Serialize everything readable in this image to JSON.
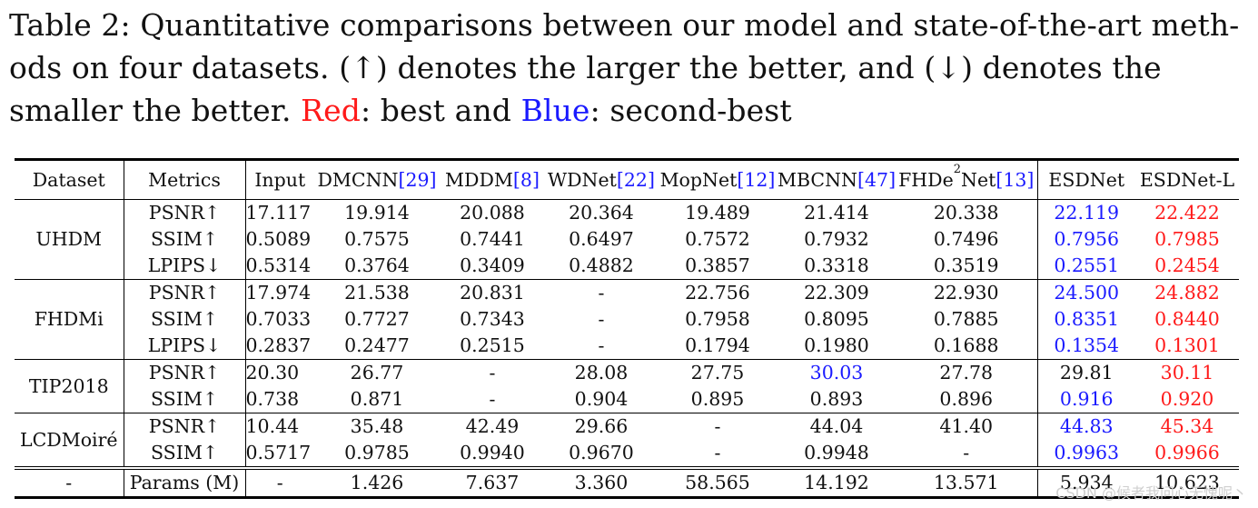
{
  "caption": {
    "prefix": "Table 2: Quantitative comparisons between our model and state-of-the-art meth-ods on four datasets. (↑) denotes the larger the better, and (↓) denotes the smaller the better. ",
    "red_word": "Red",
    "middle": ": best and ",
    "blue_word": "Blue",
    "suffix": ": second-best"
  },
  "table": {
    "headers": {
      "dataset": "Dataset",
      "metrics": "Metrics",
      "input": "Input",
      "dmcnn": "DMCNN",
      "dmcnn_ref": "[29]",
      "mddm": "MDDM",
      "mddm_ref": "[8]",
      "wdnet": "WDNet",
      "wdnet_ref": "[22]",
      "mopnet": "MopNet",
      "mopnet_ref": "[12]",
      "mbcnn": "MBCNN",
      "mbcnn_ref": "[47]",
      "fhde_a": "FHDe",
      "fhde_sup": "2",
      "fhde_b": "Net",
      "fhde_ref": "[13]",
      "esdnet": "ESDNet",
      "esdnetl": "ESDNet-L"
    },
    "groups": [
      {
        "dataset": "UHDM",
        "rows": [
          {
            "metric": "PSNR↑",
            "input": "17.117",
            "dmcnn": "19.914",
            "mddm": "20.088",
            "wdnet": "20.364",
            "mopnet": "19.489",
            "mbcnn": "21.414",
            "fhde": "20.338",
            "esdnet": "22.119",
            "esdnetl": "22.422"
          },
          {
            "metric": "SSIM↑",
            "input": "0.5089",
            "dmcnn": "0.7575",
            "mddm": "0.7441",
            "wdnet": "0.6497",
            "mopnet": "0.7572",
            "mbcnn": "0.7932",
            "fhde": "0.7496",
            "esdnet": "0.7956",
            "esdnetl": "0.7985"
          },
          {
            "metric": "LPIPS↓",
            "input": "0.5314",
            "dmcnn": "0.3764",
            "mddm": "0.3409",
            "wdnet": "0.4882",
            "mopnet": "0.3857",
            "mbcnn": "0.3318",
            "fhde": "0.3519",
            "esdnet": "0.2551",
            "esdnetl": "0.2454"
          }
        ]
      },
      {
        "dataset": "FHDMi",
        "rows": [
          {
            "metric": "PSNR↑",
            "input": "17.974",
            "dmcnn": "21.538",
            "mddm": "20.831",
            "wdnet": "-",
            "mopnet": "22.756",
            "mbcnn": "22.309",
            "fhde": "22.930",
            "esdnet": "24.500",
            "esdnetl": "24.882"
          },
          {
            "metric": "SSIM↑",
            "input": "0.7033",
            "dmcnn": "0.7727",
            "mddm": "0.7343",
            "wdnet": "-",
            "mopnet": "0.7958",
            "mbcnn": "0.8095",
            "fhde": "0.7885",
            "esdnet": "0.8351",
            "esdnetl": "0.8440"
          },
          {
            "metric": "LPIPS↓",
            "input": "0.2837",
            "dmcnn": "0.2477",
            "mddm": "0.2515",
            "wdnet": "-",
            "mopnet": "0.1794",
            "mbcnn": "0.1980",
            "fhde": "0.1688",
            "esdnet": "0.1354",
            "esdnetl": "0.1301"
          }
        ]
      },
      {
        "dataset": "TIP2018",
        "rows": [
          {
            "metric": "PSNR↑",
            "input": "20.30",
            "dmcnn": "26.77",
            "mddm": "-",
            "wdnet": "28.08",
            "mopnet": "27.75",
            "mbcnn": "30.03",
            "fhde": "27.78",
            "esdnet": "29.81",
            "esdnetl": "30.11"
          },
          {
            "metric": "SSIM↑",
            "input": "0.738",
            "dmcnn": "0.871",
            "mddm": "-",
            "wdnet": "0.904",
            "mopnet": "0.895",
            "mbcnn": "0.893",
            "fhde": "0.896",
            "esdnet": "0.916",
            "esdnetl": "0.920"
          }
        ]
      },
      {
        "dataset": "LCDMoiré",
        "rows": [
          {
            "metric": "PSNR↑",
            "input": "10.44",
            "dmcnn": "35.48",
            "mddm": "42.49",
            "wdnet": "29.66",
            "mopnet": "-",
            "mbcnn": "44.04",
            "fhde": "41.40",
            "esdnet": "44.83",
            "esdnetl": "45.34"
          },
          {
            "metric": "SSIM↑",
            "input": "0.5717",
            "dmcnn": "0.9785",
            "mddm": "0.9940",
            "wdnet": "0.9670",
            "mopnet": "-",
            "mbcnn": "0.9948",
            "fhde": "-",
            "esdnet": "0.9963",
            "esdnetl": "0.9966"
          }
        ]
      }
    ],
    "params": {
      "dataset": "-",
      "metric": "Params (M)",
      "input": "-",
      "dmcnn": "1.426",
      "mddm": "7.637",
      "wdnet": "3.360",
      "mopnet": "58.565",
      "mbcnn": "14.192",
      "fhde": "13.571",
      "esdnet": "5.934",
      "esdnetl": "10.623"
    }
  },
  "highlight_colors": {
    "best": "#ff1a1a",
    "second": "#1a1aff"
  },
  "watermark": "CSDN @候者我问心无愧呢丶"
}
